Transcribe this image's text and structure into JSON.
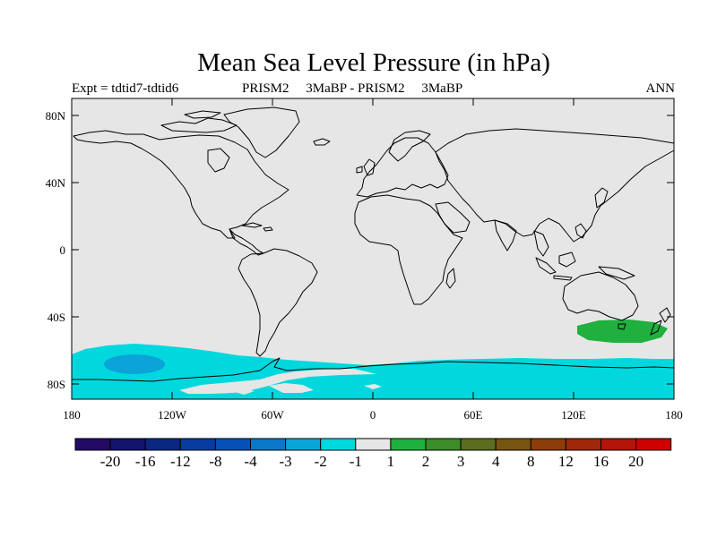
{
  "title": "Mean Sea Level Pressure (in hPa)",
  "subtitle_left": "Expt = tdtid7-tdtid6",
  "subtitle_center": "PRISM2     3MaBP - PRISM2     3MaBP",
  "subtitle_right": "ANN",
  "lat_ticks": [
    "80N",
    "40N",
    "0",
    "40S",
    "80S"
  ],
  "lon_ticks": [
    "180",
    "120W",
    "60W",
    "0",
    "60E",
    "120E",
    "180"
  ],
  "colors": {
    "background": "#e6e6e6",
    "coastline": "#000000",
    "cyan": "#00d8de",
    "blue": "#0ba3d8",
    "green": "#1fb03e"
  },
  "legend": {
    "labels": [
      "-20",
      "-16",
      "-12",
      "-8",
      "-4",
      "-3",
      "-2",
      "-1",
      "1",
      "2",
      "3",
      "4",
      "8",
      "12",
      "16",
      "20"
    ],
    "colors": [
      "#230a64",
      "#14146e",
      "#0a2882",
      "#0a3ca0",
      "#0550b4",
      "#0a78c8",
      "#0aa5d7",
      "#00d8de",
      "#e6e6e6",
      "#1fb03e",
      "#3c8c28",
      "#5a6e1e",
      "#78550f",
      "#8c3c0a",
      "#a0280a",
      "#b4140a",
      "#cd0000"
    ]
  }
}
